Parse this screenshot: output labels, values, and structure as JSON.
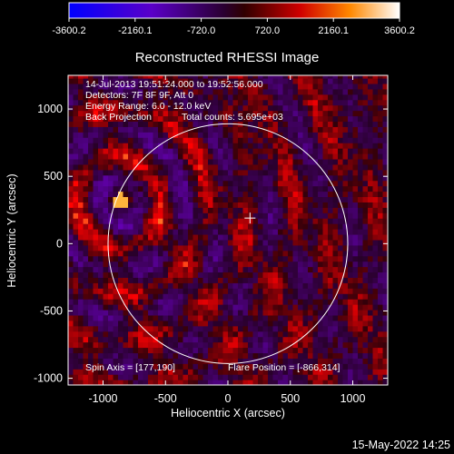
{
  "colorbar": {
    "ticks": [
      "-3600.2",
      "-2160.1",
      "-720.0",
      "720.0",
      "2160.1",
      "3600.2"
    ],
    "range": [
      -3600.2,
      3600.2
    ]
  },
  "chart_data": {
    "type": "heatmap",
    "title": "Reconstructed RHESSI Image",
    "xlabel": "Heliocentric X (arcsec)",
    "ylabel": "Heliocentric Y (arcsec)",
    "xlim": [
      -1280,
      1280
    ],
    "ylim": [
      -1050,
      1250
    ],
    "xticks": [
      "-1000",
      "-500",
      "0",
      "500",
      "1000"
    ],
    "yticks": [
      "-1000",
      "-500",
      "0",
      "500",
      "1000"
    ],
    "xtick_values": [
      -1000,
      -500,
      0,
      500,
      1000
    ],
    "ytick_values": [
      -1000,
      -500,
      0,
      500,
      1000
    ],
    "solar_limb_radius": 960,
    "disk_center_marker": [
      177,
      190
    ],
    "bright_source": [
      -866,
      314
    ],
    "annotations": {
      "time": "14-Jul-2013 19:51:24.000 to 19:52:56.000",
      "detectors": "Detectors: 7F 8F 9F, Att 0",
      "energy": "Energy Range: 6.0 - 12.0 keV",
      "method": "Back Projection",
      "counts": "Total counts: 5.695e+03",
      "spin_axis": "Spin Axis = [177,190]",
      "flare_position": "Flare Position = [-866,314]"
    }
  },
  "footer": {
    "date": "15-May-2022 14:25"
  }
}
